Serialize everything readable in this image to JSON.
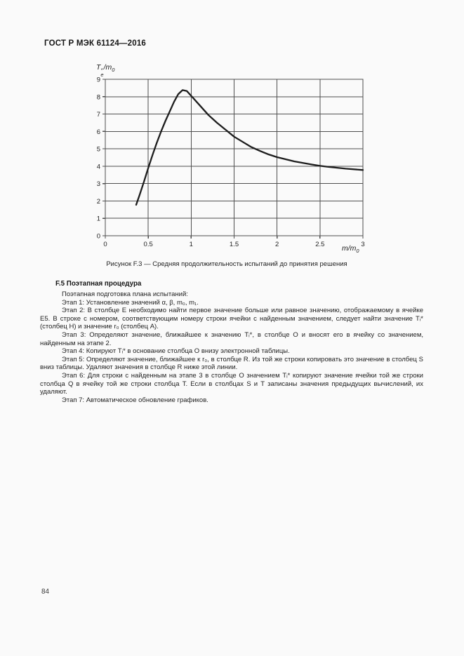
{
  "header": {
    "title": "ГОСТ Р МЭК 61124—2016"
  },
  "figure": {
    "ylabel": {
      "base": "T",
      "sup": "*",
      "sub": "e",
      "rest": "/m",
      "rest_sub": "0"
    },
    "xlabel": {
      "base": "m/m",
      "sub": "0"
    },
    "caption": "Рисунок F.3 — Средняя продолжительность испытаний до принятия решения"
  },
  "chart_data": {
    "type": "line",
    "title": "",
    "xlabel": "m/m0",
    "ylabel": "Te*/m0",
    "xlim": [
      0,
      3
    ],
    "ylim": [
      0,
      9
    ],
    "xticks": [
      0,
      0.5,
      1,
      1.5,
      2,
      2.5,
      3
    ],
    "xtick_labels": [
      "0",
      "0.5",
      "1",
      "1.5",
      "2",
      "2.5",
      "3"
    ],
    "yticks": [
      0,
      1,
      2,
      3,
      4,
      5,
      6,
      7,
      8,
      9
    ],
    "ytick_labels": [
      "0",
      "1",
      "2",
      "3",
      "4",
      "5",
      "6",
      "7",
      "8",
      "9"
    ],
    "grid": true,
    "legend": false,
    "line_color": "#1d1d1d",
    "grid_color": "#4f4f4f",
    "tick_label_color": "#222222",
    "series": [
      {
        "name": "Te*/m0",
        "x": [
          0.36,
          0.4,
          0.45,
          0.5,
          0.55,
          0.6,
          0.65,
          0.7,
          0.75,
          0.8,
          0.85,
          0.9,
          0.95,
          1.0,
          1.1,
          1.2,
          1.3,
          1.4,
          1.5,
          1.6,
          1.7,
          1.8,
          1.9,
          2.0,
          2.2,
          2.4,
          2.5,
          2.6,
          2.8,
          3.0
        ],
        "y": [
          1.78,
          2.35,
          3.1,
          3.9,
          4.65,
          5.35,
          6.0,
          6.6,
          7.15,
          7.7,
          8.15,
          8.38,
          8.32,
          8.05,
          7.5,
          6.95,
          6.5,
          6.1,
          5.7,
          5.4,
          5.1,
          4.88,
          4.68,
          4.52,
          4.28,
          4.1,
          4.02,
          3.96,
          3.86,
          3.78
        ]
      }
    ]
  },
  "section": {
    "heading": "F.5 Поэтапная процедура",
    "paragraphs": [
      "Поэтапная подготовка плана испытаний:",
      "Этап 1: Установление значений α, β, m₀, m₁.",
      "Этап 2: В столбце Е необходимо найти первое значение больше или равное значению, отображаемому в ячейке Е5. В строке с номером, соответствующим номеру строки ячейки с найденным значением, следует найти значение Tᵢ* (столбец Н) и значение r₀ (столбец А).",
      "Этап 3: Определяют значение, ближайшее к значению Tᵢ*, в столбце О и вносят его в ячейку со значением, найденным на этапе 2.",
      "Этап 4: Копируют Tᵢ* в основание столбца О внизу электронной таблицы.",
      "Этап 5: Определяют значение, ближайшее к r₀, в столбце R. Из той же строки копировать это значение в столбец S вниз таблицы. Удаляют значения в столбце R ниже этой линии.",
      "Этап 6: Для строки с найденным на этапе 3 в столбце О значением Tᵢ* копируют значение ячейки той же строки столбца Q в ячейку той же строки столбца Т. Если в столбцах S и Т записаны значения предыдущих вычислений, их удаляют.",
      "Этап 7: Автоматическое обновление графиков."
    ]
  },
  "footer": {
    "page_number": "84"
  }
}
